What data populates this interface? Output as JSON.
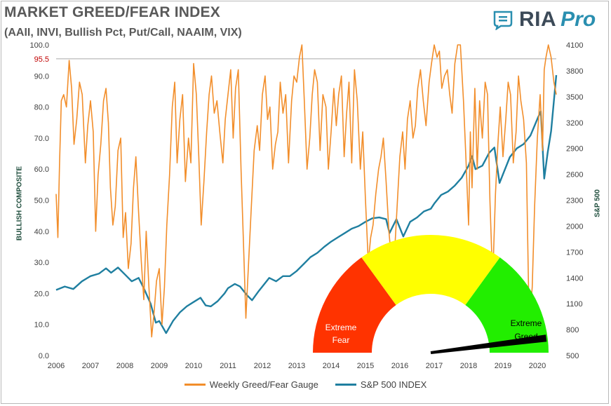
{
  "header": {
    "title": "MARKET GREED/FEAR INDEX",
    "subtitle": "(AAII, INVI, Bullish Pct, Put/Call, NAAIM, VIX)"
  },
  "logo": {
    "brand": "RIA",
    "suffix": "Pro"
  },
  "chart_data": {
    "type": "line",
    "title": "MARKET GREED/FEAR INDEX",
    "subtitle": "(AAII, INVI, Bullish Pct, Put/Call, NAAIM, VIX)",
    "x_ticks": [
      "2006",
      "2007",
      "2008",
      "2009",
      "2010",
      "2011",
      "2012",
      "2013",
      "2014",
      "2015",
      "2016",
      "2017",
      "2018",
      "2019",
      "2020"
    ],
    "xlim": [
      2006.0,
      2020.55
    ],
    "ylabel": "BULLISH COMPOSITE",
    "ylim": [
      0,
      100
    ],
    "y_ticks": [
      "0.0",
      "10.0",
      "20.0",
      "30.0",
      "40.0",
      "50.0",
      "60.0",
      "70.0",
      "80.0",
      "90.0",
      "100.0"
    ],
    "y2label": "S&P 500",
    "y2lim": [
      500,
      4100
    ],
    "y2_ticks": [
      "500",
      "800",
      "1100",
      "1400",
      "1700",
      "2000",
      "2300",
      "2600",
      "2900",
      "3200",
      "3500",
      "3800",
      "4100"
    ],
    "reference_line": {
      "value": 95.5,
      "label": "95.5",
      "color": "#c00000"
    },
    "series": [
      {
        "name": "Weekly Greed/Fear Gauge",
        "axis": "left",
        "color": "#f28e2b",
        "x": [
          2006.0,
          2006.05,
          2006.1,
          2006.15,
          2006.22,
          2006.3,
          2006.38,
          2006.45,
          2006.52,
          2006.6,
          2006.68,
          2006.76,
          2006.85,
          2006.92,
          2007.0,
          2007.08,
          2007.15,
          2007.22,
          2007.3,
          2007.38,
          2007.45,
          2007.52,
          2007.58,
          2007.65,
          2007.72,
          2007.8,
          2007.88,
          2007.95,
          2008.02,
          2008.1,
          2008.18,
          2008.25,
          2008.32,
          2008.4,
          2008.48,
          2008.55,
          2008.62,
          2008.7,
          2008.78,
          2008.85,
          2008.92,
          2009.0,
          2009.08,
          2009.15,
          2009.22,
          2009.3,
          2009.38,
          2009.45,
          2009.52,
          2009.6,
          2009.68,
          2009.76,
          2009.85,
          2009.92,
          2010.0,
          2010.08,
          2010.15,
          2010.22,
          2010.3,
          2010.38,
          2010.45,
          2010.52,
          2010.6,
          2010.68,
          2010.76,
          2010.85,
          2010.92,
          2011.0,
          2011.08,
          2011.15,
          2011.22,
          2011.3,
          2011.38,
          2011.45,
          2011.52,
          2011.6,
          2011.68,
          2011.76,
          2011.85,
          2011.92,
          2012.0,
          2012.08,
          2012.15,
          2012.22,
          2012.3,
          2012.38,
          2012.45,
          2012.52,
          2012.6,
          2012.68,
          2012.76,
          2012.85,
          2012.92,
          2013.0,
          2013.08,
          2013.15,
          2013.22,
          2013.3,
          2013.38,
          2013.45,
          2013.52,
          2013.6,
          2013.68,
          2013.76,
          2013.85,
          2013.92,
          2014.0,
          2014.08,
          2014.15,
          2014.22,
          2014.3,
          2014.38,
          2014.45,
          2014.52,
          2014.6,
          2014.68,
          2014.76,
          2014.85,
          2014.92,
          2015.0,
          2015.08,
          2015.15,
          2015.22,
          2015.3,
          2015.38,
          2015.45,
          2015.52,
          2015.6,
          2015.68,
          2015.76,
          2015.85,
          2015.92,
          2016.0,
          2016.08,
          2016.15,
          2016.22,
          2016.3,
          2016.38,
          2016.45,
          2016.52,
          2016.6,
          2016.68,
          2016.76,
          2016.85,
          2016.92,
          2017.0,
          2017.08,
          2017.15,
          2017.22,
          2017.3,
          2017.38,
          2017.45,
          2017.52,
          2017.6,
          2017.68,
          2017.76,
          2017.85,
          2017.92,
          2018.0,
          2018.05,
          2018.1,
          2018.18,
          2018.25,
          2018.32,
          2018.4,
          2018.48,
          2018.55,
          2018.62,
          2018.7,
          2018.78,
          2018.85,
          2018.92,
          2019.0,
          2019.08,
          2019.15,
          2019.22,
          2019.3,
          2019.38,
          2019.45,
          2019.52,
          2019.6,
          2019.68,
          2019.76,
          2019.85,
          2019.92,
          2020.0,
          2020.08,
          2020.15,
          2020.2,
          2020.25,
          2020.32,
          2020.4,
          2020.48,
          2020.55
        ],
        "values": [
          52,
          38,
          62,
          82,
          84,
          80,
          95,
          86,
          68,
          76,
          88,
          84,
          62,
          74,
          82,
          72,
          40,
          58,
          68,
          82,
          86,
          75,
          54,
          42,
          48,
          66,
          70,
          38,
          46,
          28,
          36,
          54,
          64,
          46,
          30,
          18,
          40,
          22,
          6,
          14,
          24,
          28,
          10,
          22,
          42,
          58,
          80,
          88,
          62,
          76,
          84,
          56,
          70,
          62,
          94,
          84,
          64,
          42,
          56,
          72,
          84,
          90,
          78,
          82,
          72,
          62,
          76,
          84,
          92,
          70,
          86,
          92,
          60,
          36,
          12,
          30,
          48,
          66,
          74,
          66,
          84,
          90,
          76,
          80,
          60,
          68,
          72,
          88,
          78,
          84,
          62,
          82,
          90,
          88,
          96,
          100,
          82,
          60,
          70,
          84,
          92,
          88,
          66,
          84,
          80,
          60,
          72,
          86,
          74,
          84,
          90,
          64,
          78,
          88,
          62,
          92,
          82,
          60,
          72,
          50,
          30,
          38,
          42,
          52,
          60,
          64,
          70,
          56,
          40,
          30,
          34,
          48,
          64,
          72,
          60,
          76,
          82,
          70,
          74,
          86,
          92,
          82,
          74,
          88,
          94,
          100,
          96,
          98,
          86,
          90,
          92,
          84,
          78,
          94,
          100,
          100,
          82,
          64,
          42,
          72,
          54,
          86,
          60,
          82,
          70,
          88,
          84,
          50,
          24,
          52,
          68,
          80,
          64,
          76,
          88,
          84,
          62,
          72,
          90,
          82,
          76,
          62,
          10,
          22,
          48,
          70,
          84,
          66,
          92,
          96,
          100,
          96,
          88,
          84
        ]
      },
      {
        "name": "S&P 500 INDEX",
        "axis": "right",
        "color": "#1f7fa0",
        "x": [
          2006.0,
          2006.25,
          2006.5,
          2006.75,
          2007.0,
          2007.25,
          2007.45,
          2007.6,
          2007.8,
          2008.0,
          2008.2,
          2008.4,
          2008.55,
          2008.75,
          2008.9,
          2009.0,
          2009.1,
          2009.2,
          2009.4,
          2009.6,
          2009.8,
          2010.0,
          2010.2,
          2010.35,
          2010.5,
          2010.7,
          2010.9,
          2011.0,
          2011.2,
          2011.35,
          2011.55,
          2011.7,
          2011.9,
          2012.0,
          2012.2,
          2012.4,
          2012.6,
          2012.8,
          2013.0,
          2013.2,
          2013.4,
          2013.6,
          2013.8,
          2014.0,
          2014.2,
          2014.4,
          2014.6,
          2014.8,
          2015.0,
          2015.2,
          2015.4,
          2015.6,
          2015.7,
          2015.9,
          2016.1,
          2016.3,
          2016.5,
          2016.7,
          2016.9,
          2017.0,
          2017.2,
          2017.4,
          2017.6,
          2017.8,
          2018.0,
          2018.1,
          2018.2,
          2018.4,
          2018.6,
          2018.75,
          2018.9,
          2019.0,
          2019.2,
          2019.4,
          2019.6,
          2019.8,
          2020.0,
          2020.1,
          2020.2,
          2020.3,
          2020.4,
          2020.55
        ],
        "values": [
          1260,
          1300,
          1270,
          1360,
          1420,
          1450,
          1510,
          1460,
          1520,
          1440,
          1360,
          1400,
          1280,
          1100,
          880,
          900,
          830,
          760,
          900,
          1000,
          1070,
          1120,
          1170,
          1080,
          1070,
          1130,
          1220,
          1280,
          1330,
          1300,
          1200,
          1140,
          1250,
          1300,
          1400,
          1360,
          1420,
          1420,
          1480,
          1560,
          1640,
          1690,
          1760,
          1820,
          1870,
          1920,
          1970,
          2000,
          2050,
          2090,
          2100,
          2080,
          1920,
          2080,
          1880,
          2050,
          2100,
          2170,
          2200,
          2260,
          2360,
          2400,
          2470,
          2560,
          2700,
          2810,
          2660,
          2700,
          2850,
          2910,
          2500,
          2600,
          2800,
          2900,
          2950,
          3050,
          3240,
          3330,
          2550,
          2850,
          3100,
          3750
        ]
      }
    ],
    "gauge": {
      "segments": [
        {
          "label": "Extreme Fear",
          "color": "#ff3300",
          "from": 0,
          "to": 30
        },
        {
          "label": "",
          "color": "#ffff00",
          "from": 30,
          "to": 70
        },
        {
          "label": "Extreme Greed",
          "color": "#22ee00",
          "from": 70,
          "to": 100
        }
      ],
      "needle_value": 96,
      "fear_line1": "Extreme",
      "fear_line2": "Fear",
      "greed_line1": "Extreme",
      "greed_line2": "Greed"
    },
    "legend_position": "bottom"
  }
}
